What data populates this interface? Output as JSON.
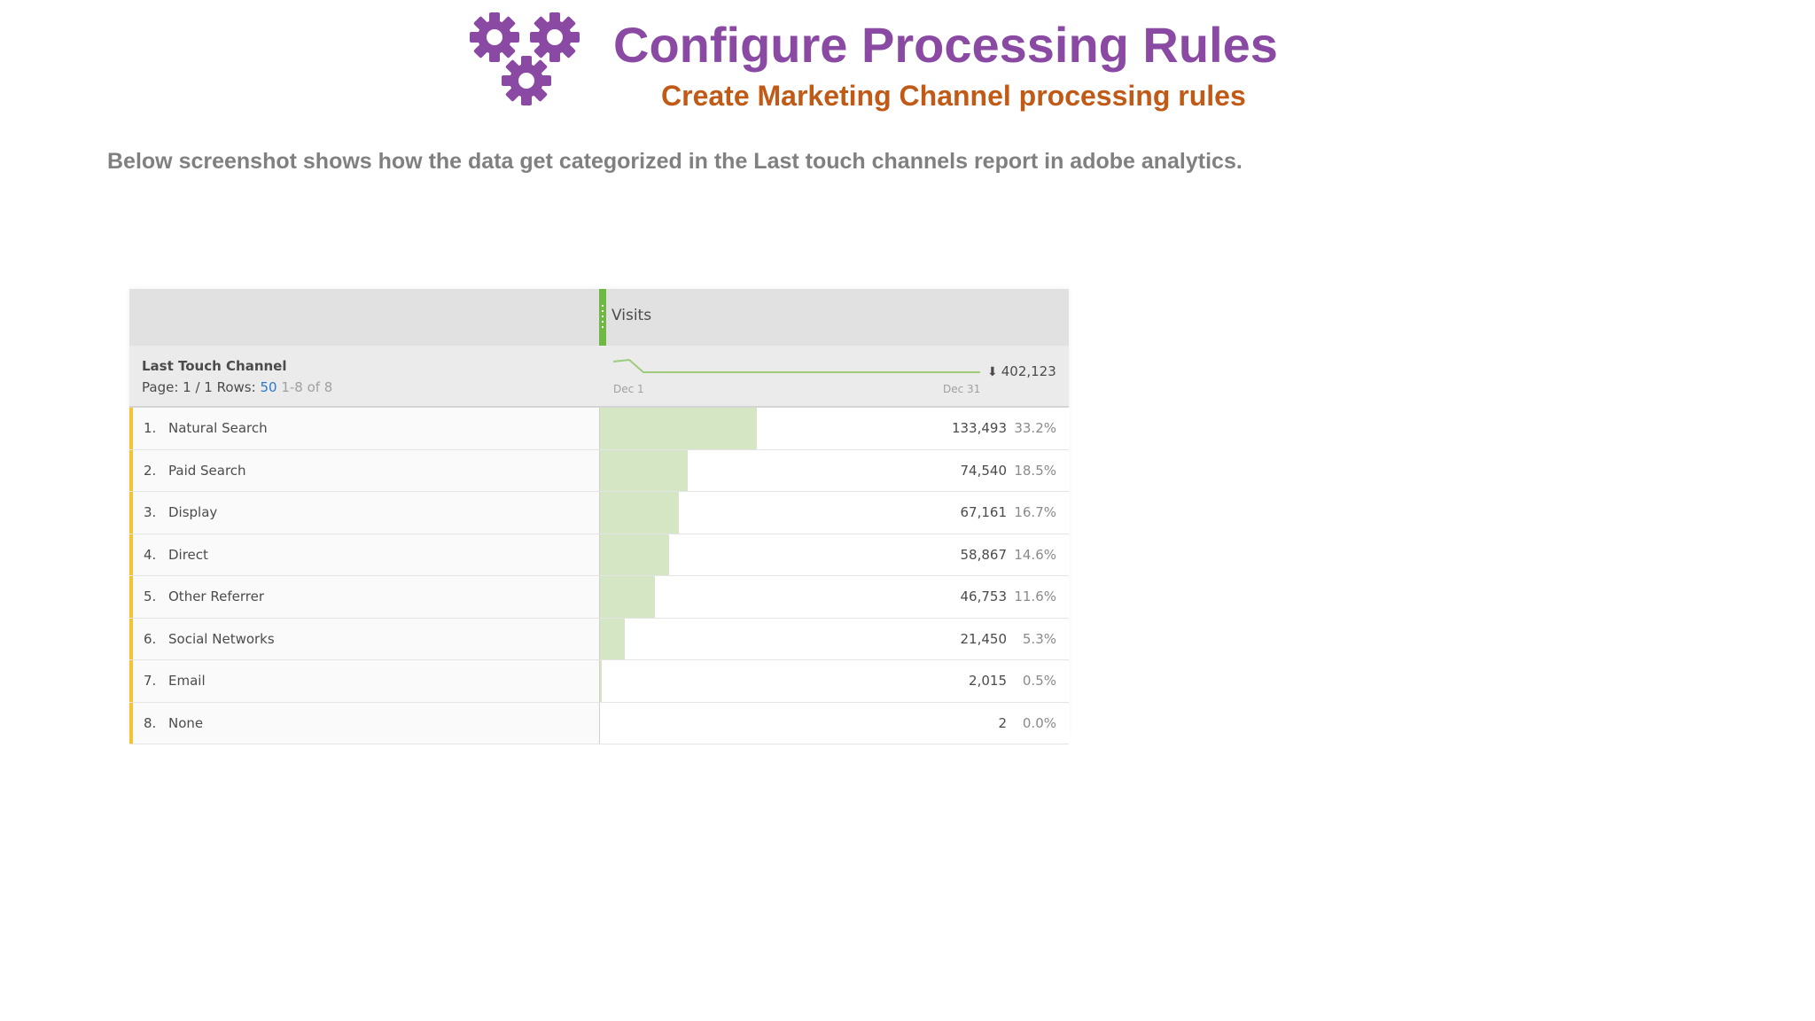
{
  "header": {
    "title": "Configure Processing Rules",
    "subtitle": "Create Marketing Channel processing rules",
    "gear_icon": "gears-icon",
    "title_color": "#8a4aa3",
    "subtitle_color": "#c05a16"
  },
  "description": "Below screenshot shows how the data get categorized in the Last touch channels report in adobe analytics.",
  "report": {
    "metric_label": "Visits",
    "dimension_label": "Last Touch Channel",
    "page_label": "Page: 1 / 1",
    "rows_label": "Rows:",
    "rows_value": "50",
    "range_label": "1-8 of 8",
    "spark_start": "Dec 1",
    "spark_end": "Dec 31",
    "total": "402,123",
    "sort_icon": "sort-descending-icon",
    "accent_color": "#6fb843",
    "bar_color": "#d5e6c4",
    "row_marker_color": "#f3c334",
    "rows": [
      {
        "num": "1.",
        "label": "Natural Search",
        "value": "133,493",
        "pct": "33.2%",
        "share": 0.332
      },
      {
        "num": "2.",
        "label": "Paid Search",
        "value": "74,540",
        "pct": "18.5%",
        "share": 0.185
      },
      {
        "num": "3.",
        "label": "Display",
        "value": "67,161",
        "pct": "16.7%",
        "share": 0.167
      },
      {
        "num": "4.",
        "label": "Direct",
        "value": "58,867",
        "pct": "14.6%",
        "share": 0.146
      },
      {
        "num": "5.",
        "label": "Other Referrer",
        "value": "46,753",
        "pct": "11.6%",
        "share": 0.116
      },
      {
        "num": "6.",
        "label": "Social Networks",
        "value": "21,450",
        "pct": "5.3%",
        "share": 0.053
      },
      {
        "num": "7.",
        "label": "Email",
        "value": "2,015",
        "pct": "0.5%",
        "share": 0.005
      },
      {
        "num": "8.",
        "label": "None",
        "value": "2",
        "pct": "0.0%",
        "share": 0.0
      }
    ]
  }
}
